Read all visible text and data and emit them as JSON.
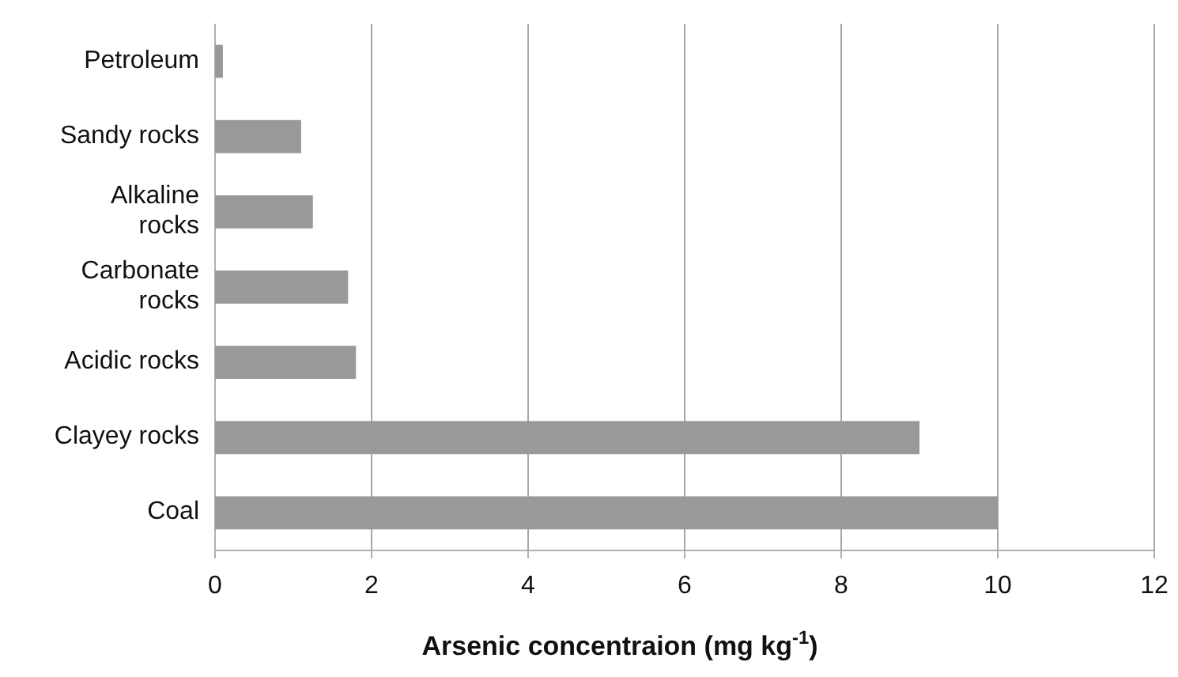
{
  "chart_data": {
    "type": "bar",
    "orientation": "horizontal",
    "xlabel": "Arsenic concentraion (mg kg$^{-1}$)",
    "categories": [
      "Petroleum",
      "Sandy rocks",
      "Alkaline rocks",
      "Carbonate rocks",
      "Acidic rocks",
      "Clayey rocks",
      "Coal"
    ],
    "values": [
      0.1,
      1.1,
      1.25,
      1.7,
      1.8,
      9,
      10
    ],
    "color": "#999999",
    "xlim": [
      0,
      12
    ],
    "xticks": [
      0,
      2,
      4,
      6,
      8,
      10,
      12
    ],
    "grid": "x"
  }
}
